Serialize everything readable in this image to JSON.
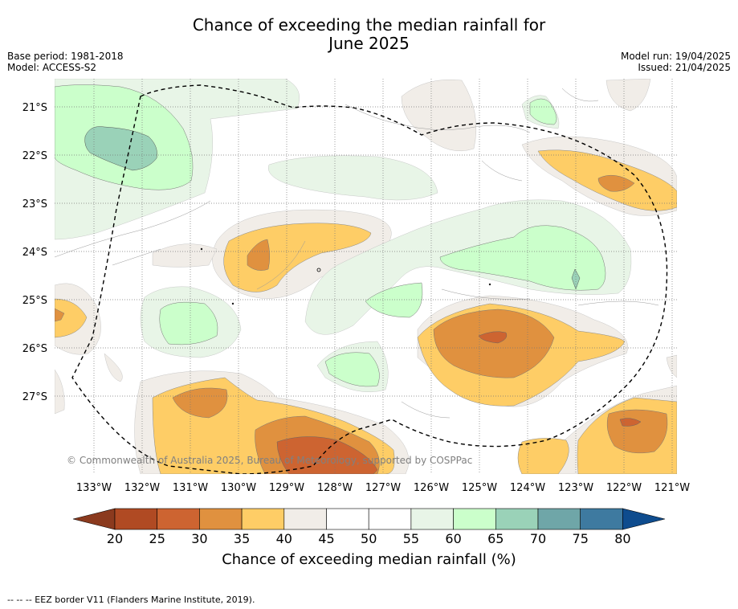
{
  "title": {
    "line1": "Chance of exceeding the median rainfall for",
    "line2": "June 2025"
  },
  "meta_left": {
    "base_period": "Base period: 1981-2018",
    "model": "Model: ACCESS-S2"
  },
  "meta_right": {
    "model_run": "Model run: 19/04/2025",
    "issued": "Issued: 21/04/2025"
  },
  "map": {
    "lat_labels": [
      "21°S",
      "22°S",
      "23°S",
      "24°S",
      "25°S",
      "26°S",
      "27°S"
    ],
    "lon_labels": [
      "133°W",
      "132°W",
      "131°W",
      "130°W",
      "129°W",
      "128°W",
      "127°W",
      "126°W",
      "125°W",
      "124°W",
      "123°W",
      "122°W",
      "121°W"
    ],
    "copyright": "© Commonwealth of Australia 2025, Bureau of Meteorology, supported by COSPPac",
    "border_style": "dashed"
  },
  "colorbar": {
    "ticks": [
      "20",
      "25",
      "30",
      "35",
      "40",
      "45",
      "50",
      "55",
      "60",
      "65",
      "70",
      "75",
      "80"
    ],
    "colors": [
      "#8b3a1e",
      "#b04a23",
      "#cd6431",
      "#e0913f",
      "#fecd66",
      "#f1ede8",
      "#ffffff",
      "#ffffff",
      "#e8f5e7",
      "#cbffcb",
      "#9ad2b8",
      "#6fa6a8",
      "#3e7aa0",
      "#0e4c8e"
    ],
    "title": "Chance of exceeding median rainfall (%)"
  },
  "footer": "--  --  -- EEZ border V11 (Flanders Marine Institute, 2019)."
}
